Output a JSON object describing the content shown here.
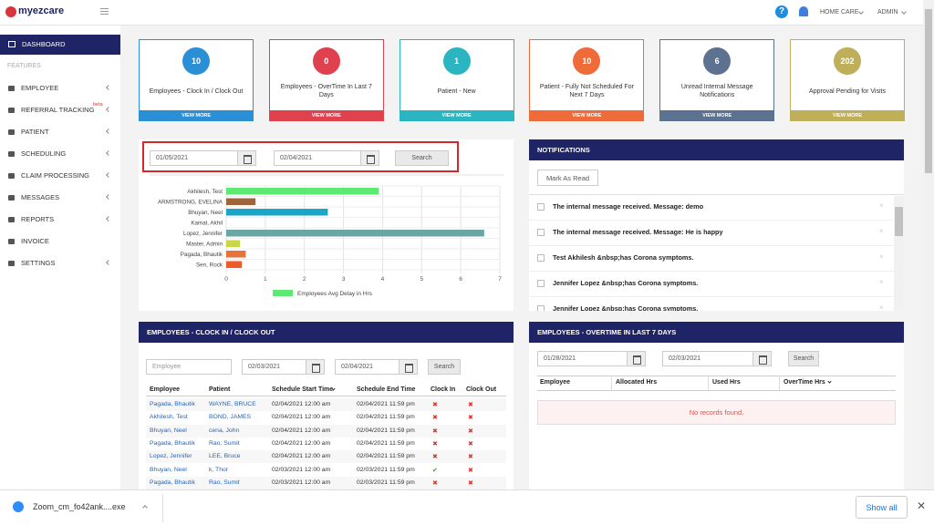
{
  "header": {
    "brand": "myezcare",
    "agency": "HOME CARE",
    "user": "ADMIN"
  },
  "sidebar": {
    "active": "DASHBOARD",
    "section": "FEATURES",
    "items": [
      {
        "label": "EMPLOYEE"
      },
      {
        "label": "REFERRAL TRACKING",
        "badge": "beta"
      },
      {
        "label": "PATIENT"
      },
      {
        "label": "SCHEDULING"
      },
      {
        "label": "CLAIM PROCESSING"
      },
      {
        "label": "MESSAGES"
      },
      {
        "label": "REPORTS"
      },
      {
        "label": "INVOICE"
      },
      {
        "label": "SETTINGS"
      }
    ]
  },
  "cards": [
    {
      "count": 10,
      "label": "Employees - Clock In / Clock Out",
      "link": "VIEW MORE",
      "color": "#2b8fd6"
    },
    {
      "count": 0,
      "label": "Employees - OverTime In Last 7 Days",
      "link": "VIEW MORE",
      "color": "#e0414f"
    },
    {
      "count": 1,
      "label": "Patient - New",
      "link": "VIEW MORE",
      "color": "#2bb5c0"
    },
    {
      "count": 10,
      "label": "Patient - Fully Not Scheduled For Next 7 Days",
      "link": "VIEW MORE",
      "color": "#ef6b3a"
    },
    {
      "count": 6,
      "label": "Unread Internal Message Notifications",
      "link": "VIEW MORE",
      "color": "#5d7290"
    },
    {
      "count": 202,
      "label": "Approval Pending for Visits",
      "link": "VIEW MORE",
      "color": "#bfae5a"
    }
  ],
  "delay_filter": {
    "from": "01/05/2021",
    "to": "02/04/2021",
    "button": "Search"
  },
  "chart_data": {
    "type": "bar",
    "orientation": "horizontal",
    "categories": [
      "Akhilesh, Test",
      "ARMSTRONG, EVELINA",
      "Bhuyan, Neel",
      "Kamal, Akhil",
      "Lopez, Jennifer",
      "Master, Admin",
      "Pagada, Bhautik",
      "Sen, Rock"
    ],
    "values": [
      3.9,
      0.75,
      2.6,
      0,
      6.6,
      0.35,
      0.5,
      0.4
    ],
    "colors": [
      "#5ee874",
      "#a0643a",
      "#1aa6c9",
      "#888888",
      "#6aa6a4",
      "#c8d648",
      "#e8733a",
      "#ef5a2a"
    ],
    "legend": {
      "name": "Employees Avg Delay in Hrs",
      "color": "#5ee874"
    },
    "xlim": [
      0,
      7
    ],
    "xticks": [
      0,
      1,
      2,
      3,
      4,
      5,
      6,
      7
    ],
    "grid": true
  },
  "notifications": {
    "title": "NOTIFICATIONS",
    "button": "Mark As Read",
    "items": [
      "The internal message received. Message: demo",
      "The internal message received. Message: He is happy",
      "Test Akhilesh &nbsp;has Corona symptoms.",
      "Jennifer Lopez &nbsp;has Corona symptoms.",
      "Jennifer Lopez &nbsp;has Corona symptoms."
    ]
  },
  "clock": {
    "title": "EMPLOYEES - CLOCK IN / CLOCK OUT",
    "employee_placeholder": "Employee",
    "from": "02/03/2021",
    "to": "02/04/2021",
    "button": "Search",
    "columns": [
      "Employee",
      "Patient",
      "Schedule Start Time",
      "Schedule End Time",
      "Clock In",
      "Clock Out"
    ],
    "rows": [
      [
        "Pagada, Bhautik",
        "WAYNE, BRUCE",
        "02/04/2021 12:00 am",
        "02/04/2021 11:59 pm",
        "✖",
        "✖"
      ],
      [
        "Akhilesh, Test",
        "BOND, JAMES",
        "02/04/2021 12:00 am",
        "02/04/2021 11:59 pm",
        "✖",
        "✖"
      ],
      [
        "Bhuyan, Neel",
        "cena, John",
        "02/04/2021 12:00 am",
        "02/04/2021 11:59 pm",
        "✖",
        "✖"
      ],
      [
        "Pagada, Bhautik",
        "Rao, Sumit",
        "02/04/2021 12:00 am",
        "02/04/2021 11:59 pm",
        "✖",
        "✖"
      ],
      [
        "Lopez, Jennifer",
        "LEE, Bruce",
        "02/04/2021 12:00 am",
        "02/04/2021 11:59 pm",
        "✖",
        "✖"
      ],
      [
        "Bhuyan, Neel",
        "k, Thor",
        "02/03/2021 12:00 am",
        "02/03/2021 11:59 pm",
        "✔",
        "✖"
      ],
      [
        "Pagada, Bhautik",
        "Rao, Sumit",
        "02/03/2021 12:00 am",
        "02/03/2021 11:59 pm",
        "✖",
        "✖"
      ]
    ]
  },
  "overtime": {
    "title": "EMPLOYEES - OVERTIME IN LAST 7 DAYS",
    "from": "01/28/2021",
    "to": "02/03/2021",
    "button": "Search",
    "columns": [
      "Employee",
      "Allocated Hrs",
      "Used Hrs",
      "OverTime Hrs"
    ],
    "empty": "No records found."
  },
  "download": {
    "file": "Zoom_cm_fo42ank....exe",
    "button": "Show all"
  }
}
